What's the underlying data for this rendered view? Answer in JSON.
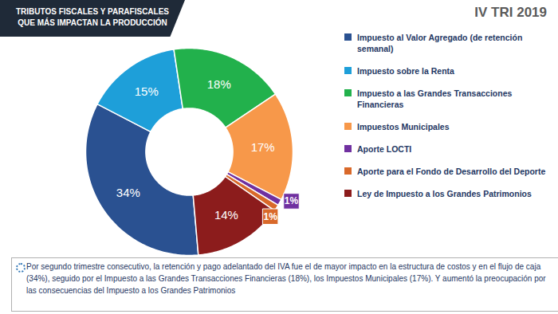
{
  "chart_data": {
    "type": "pie",
    "title": "TRIBUTOS FISCALES Y PARAFISCALES QUE MÁS IMPACTAN  LA PRODUCCIÓN",
    "subtitle": "IV TRI 2019",
    "categories": [
      "Impuesto al Valor Agregado (de retención semanal)",
      "Impuesto sobre la Renta",
      "Impuesto a las Grandes Transacciones Financieras",
      "Impuestos Municipales",
      "Aporte LOCTI",
      "Aporte para el Fondo de Desarrollo del Deporte",
      "Ley de Impuesto a los Grandes Patrimonios"
    ],
    "values": [
      34,
      15,
      18,
      17,
      1,
      1,
      14
    ],
    "value_labels": [
      "34%",
      "15%",
      "18%",
      "17%",
      "1%",
      "1%",
      "14%"
    ],
    "colors": [
      "#2a5191",
      "#1e9fd9",
      "#22b14c",
      "#f7984a",
      "#7030a0",
      "#d9692a",
      "#8c1c1c"
    ],
    "data_labels": true,
    "legend": "right",
    "annotations": [
      "Por segundo trimestre consecutivo, la retención y pago adelantado del  IVA fue el de mayor impacto en la estructura de costos y en el flujo de caja (34%), seguido por el Impuesto a las Grandes Transacciones Financieras (18%), los Impuestos Municipales (17%). Y aumentó la preocupación por las consecuencias del Impuesto a los Grandes Patrimonios"
    ]
  }
}
